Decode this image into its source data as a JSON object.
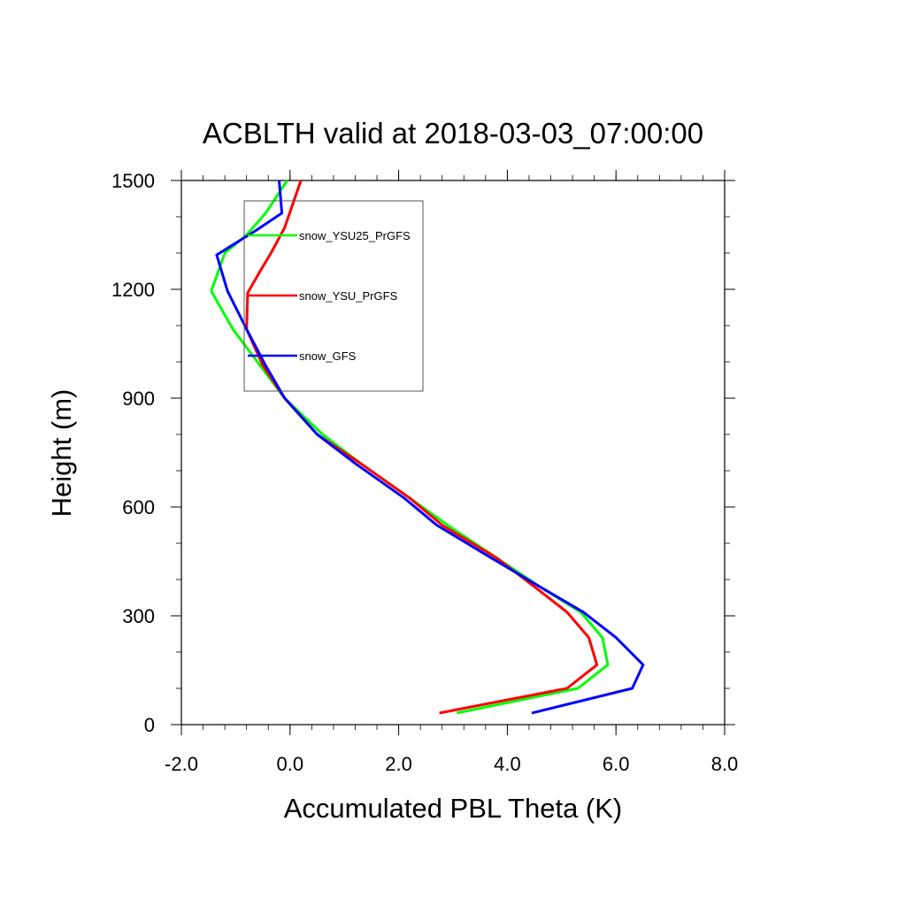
{
  "chart_data": {
    "type": "line",
    "title": "ACBLTH valid at 2018-03-03_07:00:00",
    "xlabel": "Accumulated PBL Theta (K)",
    "ylabel": "Height (m)",
    "xlim": [
      -2.0,
      8.0
    ],
    "ylim": [
      0,
      1500
    ],
    "xticks": [
      -2.0,
      0.0,
      2.0,
      4.0,
      6.0,
      8.0
    ],
    "xtick_labels": [
      "-2.0",
      "0.0",
      "2.0",
      "4.0",
      "6.0",
      "8.0"
    ],
    "yticks": [
      0,
      300,
      600,
      900,
      1200,
      1500
    ],
    "ytick_labels": [
      "0",
      "300",
      "600",
      "900",
      "1200",
      "1500"
    ],
    "grid": false,
    "legend_position": "top-left",
    "series": [
      {
        "name": "snow_YSU25_PrGFS",
        "color": "#00ff00",
        "x": [
          3.07,
          5.3,
          5.85,
          5.75,
          5.35,
          4.6,
          3.8,
          2.9,
          2.2,
          1.3,
          0.6,
          -0.1,
          -0.55,
          -1.05,
          -1.45,
          -1.2,
          -0.8,
          -0.45,
          -0.05
        ],
        "y": [
          32,
          100,
          165,
          240,
          310,
          380,
          460,
          550,
          625,
          720,
          800,
          900,
          990,
          1090,
          1195,
          1300,
          1350,
          1410,
          1500
        ]
      },
      {
        "name": "snow_YSU_PrGFS",
        "color": "#ff0000",
        "x": [
          2.75,
          5.1,
          5.65,
          5.5,
          5.1,
          4.5,
          3.8,
          2.8,
          2.2,
          1.3,
          0.5,
          -0.1,
          -0.5,
          -0.8,
          -0.78,
          -0.55,
          -0.35,
          -0.1,
          0.2
        ],
        "y": [
          32,
          100,
          165,
          240,
          310,
          380,
          460,
          550,
          625,
          720,
          800,
          900,
          990,
          1090,
          1190,
          1250,
          1300,
          1370,
          1500
        ]
      },
      {
        "name": "snow_GFS",
        "color": "#0000ff",
        "x": [
          4.45,
          6.3,
          6.5,
          6.0,
          5.4,
          4.6,
          3.7,
          2.7,
          2.1,
          1.2,
          0.5,
          -0.1,
          -0.45,
          -0.8,
          -1.15,
          -1.35,
          -0.65,
          -0.15,
          -0.2
        ],
        "y": [
          32,
          100,
          165,
          240,
          310,
          380,
          460,
          550,
          625,
          720,
          800,
          900,
          990,
          1090,
          1195,
          1295,
          1360,
          1410,
          1500
        ]
      }
    ]
  }
}
